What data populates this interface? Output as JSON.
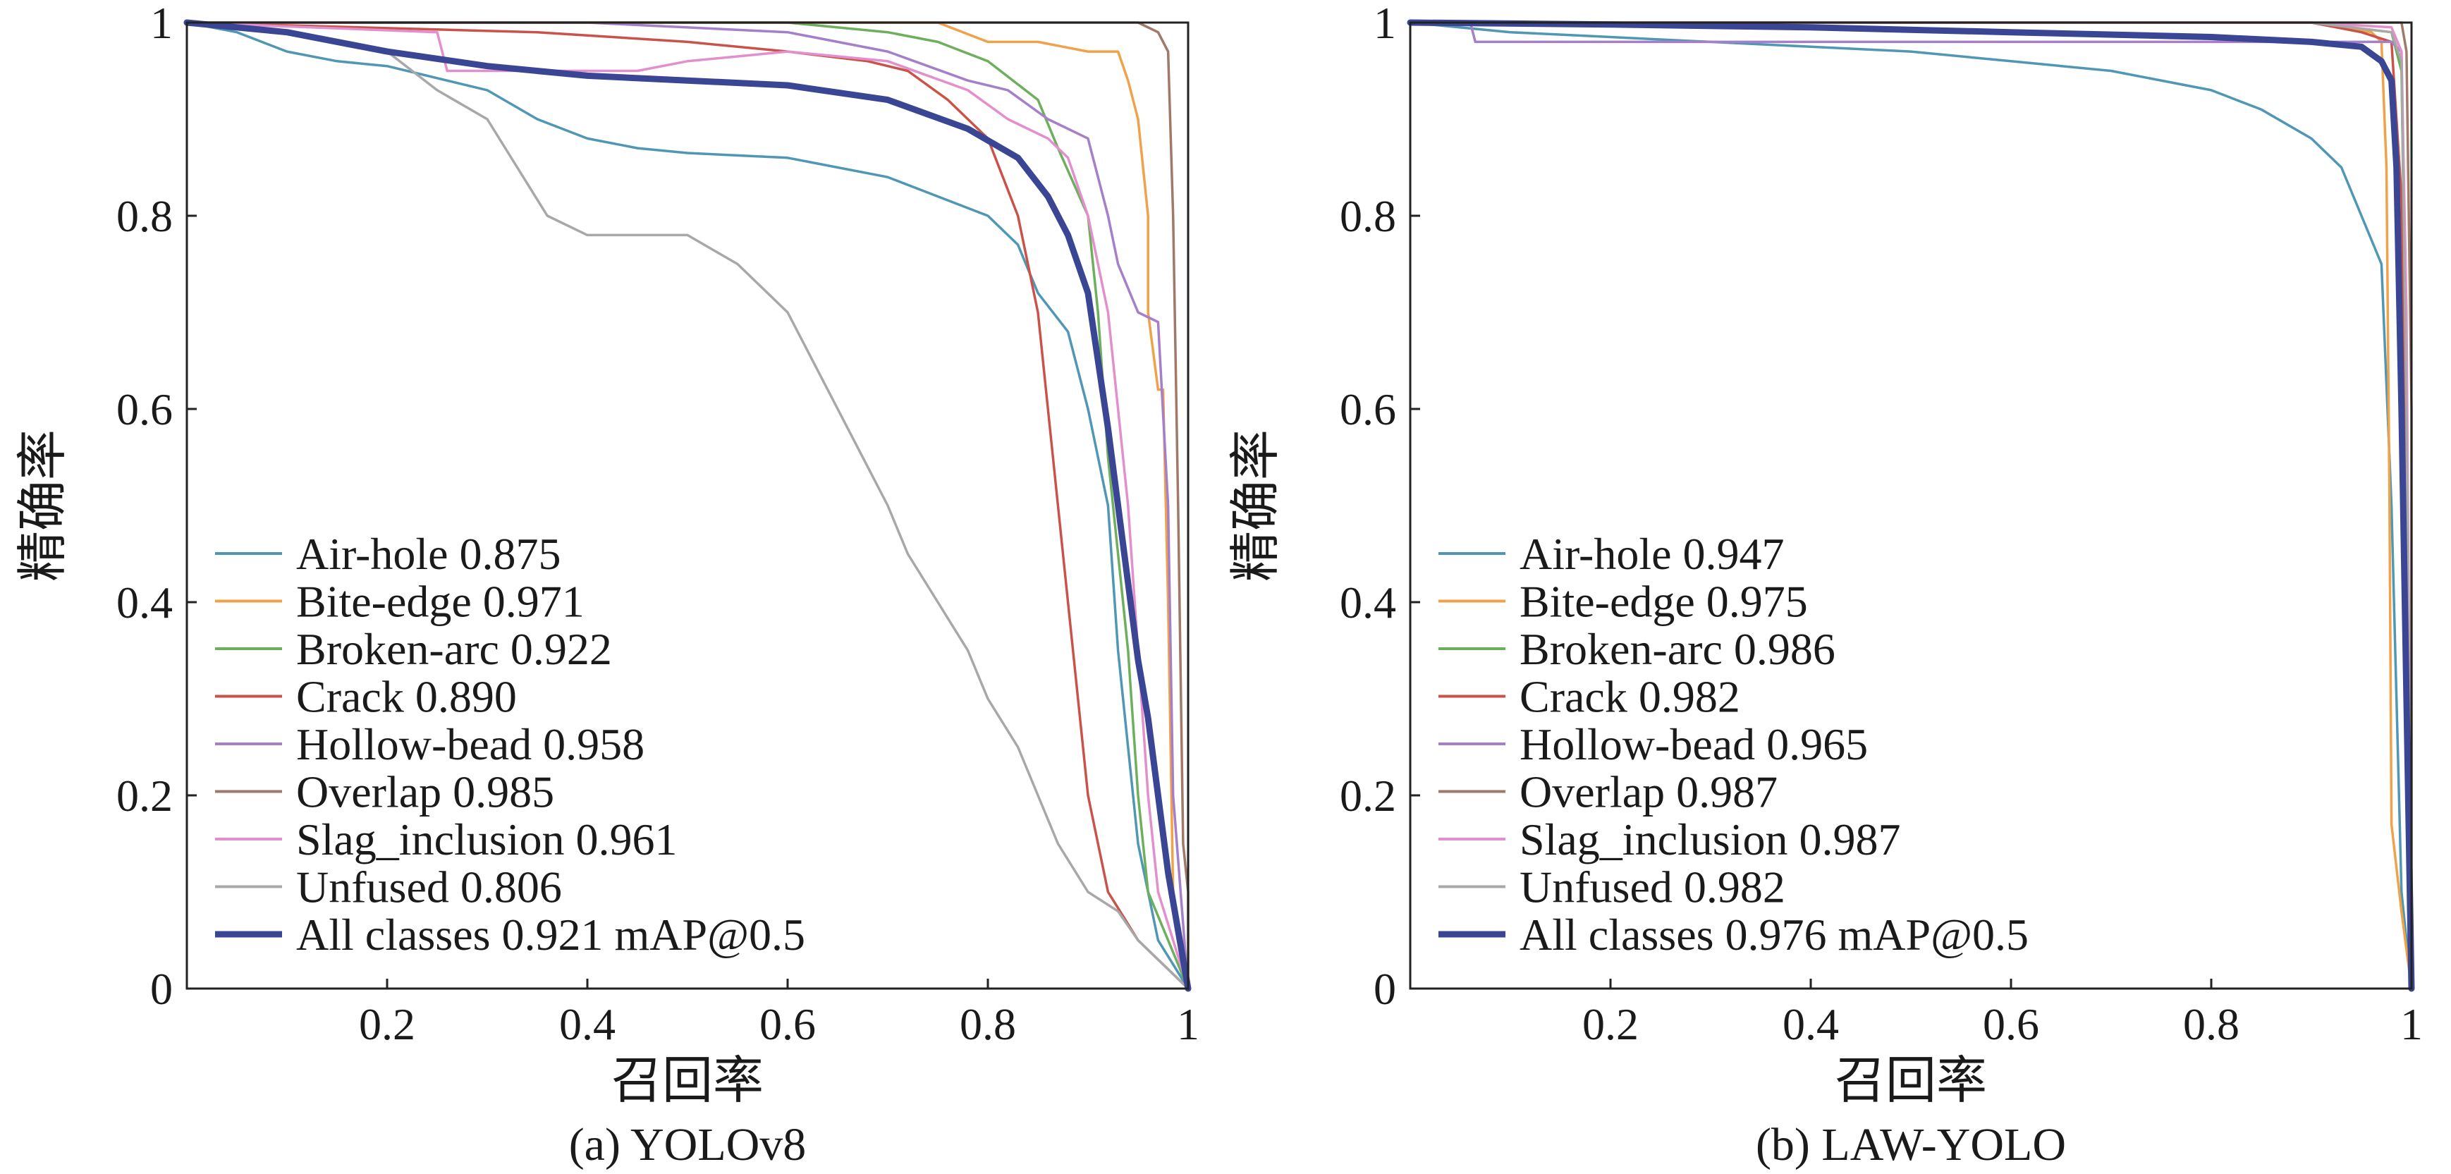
{
  "chart_data": [
    {
      "type": "line",
      "caption": "(a) YOLOv8",
      "xlabel": "召回率",
      "ylabel": "精确率",
      "xlim": [
        0,
        1
      ],
      "ylim": [
        0,
        1
      ],
      "xticks": [
        "0.2",
        "0.4",
        "0.6",
        "0.8",
        "1"
      ],
      "yticks": [
        "0",
        "0.2",
        "0.4",
        "0.6",
        "0.8",
        "1"
      ],
      "grid": false,
      "legend_position": "bottom-left",
      "series": [
        {
          "label": "Air-hole 0.875",
          "color": "#4f97b4",
          "width": 1,
          "points": [
            [
              0,
              1
            ],
            [
              0.05,
              0.99
            ],
            [
              0.1,
              0.97
            ],
            [
              0.15,
              0.96
            ],
            [
              0.2,
              0.955
            ],
            [
              0.3,
              0.93
            ],
            [
              0.35,
              0.9
            ],
            [
              0.4,
              0.88
            ],
            [
              0.45,
              0.87
            ],
            [
              0.5,
              0.865
            ],
            [
              0.6,
              0.86
            ],
            [
              0.7,
              0.84
            ],
            [
              0.75,
              0.82
            ],
            [
              0.8,
              0.8
            ],
            [
              0.83,
              0.77
            ],
            [
              0.85,
              0.72
            ],
            [
              0.88,
              0.68
            ],
            [
              0.9,
              0.6
            ],
            [
              0.92,
              0.5
            ],
            [
              0.93,
              0.35
            ],
            [
              0.95,
              0.15
            ],
            [
              0.97,
              0.05
            ],
            [
              1,
              0
            ]
          ]
        },
        {
          "label": "Bite-edge 0.971",
          "color": "#f0a24a",
          "width": 1,
          "points": [
            [
              0,
              1
            ],
            [
              0.5,
              1
            ],
            [
              0.75,
              1
            ],
            [
              0.8,
              0.98
            ],
            [
              0.85,
              0.98
            ],
            [
              0.9,
              0.97
            ],
            [
              0.93,
              0.97
            ],
            [
              0.94,
              0.94
            ],
            [
              0.95,
              0.9
            ],
            [
              0.96,
              0.8
            ],
            [
              0.96,
              0.7
            ],
            [
              0.97,
              0.62
            ],
            [
              0.975,
              0.62
            ],
            [
              0.98,
              0.4
            ],
            [
              0.985,
              0.1
            ],
            [
              1,
              0
            ]
          ]
        },
        {
          "label": "Broken-arc 0.922",
          "color": "#6eaf5e",
          "width": 1,
          "points": [
            [
              0,
              1
            ],
            [
              0.6,
              1
            ],
            [
              0.7,
              0.99
            ],
            [
              0.75,
              0.98
            ],
            [
              0.8,
              0.96
            ],
            [
              0.85,
              0.92
            ],
            [
              0.87,
              0.87
            ],
            [
              0.9,
              0.8
            ],
            [
              0.91,
              0.7
            ],
            [
              0.92,
              0.55
            ],
            [
              0.93,
              0.45
            ],
            [
              0.94,
              0.35
            ],
            [
              0.95,
              0.2
            ],
            [
              0.96,
              0.1
            ],
            [
              1,
              0
            ]
          ]
        },
        {
          "label": "Crack 0.890",
          "color": "#c9534a",
          "width": 1,
          "points": [
            [
              0,
              1
            ],
            [
              0.35,
              0.99
            ],
            [
              0.5,
              0.98
            ],
            [
              0.6,
              0.97
            ],
            [
              0.68,
              0.96
            ],
            [
              0.72,
              0.95
            ],
            [
              0.76,
              0.92
            ],
            [
              0.8,
              0.88
            ],
            [
              0.83,
              0.8
            ],
            [
              0.85,
              0.7
            ],
            [
              0.86,
              0.6
            ],
            [
              0.87,
              0.5
            ],
            [
              0.88,
              0.4
            ],
            [
              0.89,
              0.3
            ],
            [
              0.9,
              0.2
            ],
            [
              0.92,
              0.1
            ],
            [
              0.95,
              0.05
            ],
            [
              1,
              0
            ]
          ]
        },
        {
          "label": "Hollow-bead 0.958",
          "color": "#a57fc9",
          "width": 1,
          "points": [
            [
              0,
              1
            ],
            [
              0.4,
              1
            ],
            [
              0.6,
              0.99
            ],
            [
              0.7,
              0.97
            ],
            [
              0.78,
              0.94
            ],
            [
              0.82,
              0.93
            ],
            [
              0.86,
              0.9
            ],
            [
              0.9,
              0.88
            ],
            [
              0.92,
              0.8
            ],
            [
              0.93,
              0.75
            ],
            [
              0.95,
              0.7
            ],
            [
              0.97,
              0.69
            ],
            [
              0.98,
              0.5
            ],
            [
              0.985,
              0.2
            ],
            [
              1,
              0
            ]
          ]
        },
        {
          "label": "Overlap 0.985",
          "color": "#a07968",
          "width": 1,
          "points": [
            [
              0,
              1
            ],
            [
              0.6,
              1
            ],
            [
              0.8,
              1
            ],
            [
              0.9,
              1
            ],
            [
              0.95,
              1
            ],
            [
              0.97,
              0.99
            ],
            [
              0.98,
              0.97
            ],
            [
              0.985,
              0.8
            ],
            [
              0.99,
              0.5
            ],
            [
              0.995,
              0.15
            ],
            [
              1,
              0.1
            ],
            [
              1,
              0
            ]
          ]
        },
        {
          "label": "Slag_inclusion 0.961",
          "color": "#e48fcd",
          "width": 1,
          "points": [
            [
              0,
              1
            ],
            [
              0.25,
              0.99
            ],
            [
              0.26,
              0.95
            ],
            [
              0.45,
              0.95
            ],
            [
              0.5,
              0.96
            ],
            [
              0.6,
              0.97
            ],
            [
              0.7,
              0.96
            ],
            [
              0.78,
              0.93
            ],
            [
              0.82,
              0.9
            ],
            [
              0.86,
              0.88
            ],
            [
              0.88,
              0.86
            ],
            [
              0.9,
              0.8
            ],
            [
              0.92,
              0.7
            ],
            [
              0.93,
              0.6
            ],
            [
              0.94,
              0.5
            ],
            [
              0.95,
              0.35
            ],
            [
              0.96,
              0.2
            ],
            [
              0.97,
              0.1
            ],
            [
              1,
              0
            ]
          ]
        },
        {
          "label": "Unfused 0.806",
          "color": "#a8a8a8",
          "width": 1,
          "points": [
            [
              0,
              1
            ],
            [
              0.1,
              0.99
            ],
            [
              0.2,
              0.97
            ],
            [
              0.25,
              0.93
            ],
            [
              0.3,
              0.9
            ],
            [
              0.33,
              0.85
            ],
            [
              0.36,
              0.8
            ],
            [
              0.4,
              0.78
            ],
            [
              0.45,
              0.78
            ],
            [
              0.5,
              0.78
            ],
            [
              0.55,
              0.75
            ],
            [
              0.6,
              0.7
            ],
            [
              0.65,
              0.6
            ],
            [
              0.7,
              0.5
            ],
            [
              0.72,
              0.45
            ],
            [
              0.75,
              0.4
            ],
            [
              0.78,
              0.35
            ],
            [
              0.8,
              0.3
            ],
            [
              0.83,
              0.25
            ],
            [
              0.85,
              0.2
            ],
            [
              0.87,
              0.15
            ],
            [
              0.9,
              0.1
            ],
            [
              0.93,
              0.08
            ],
            [
              0.95,
              0.05
            ],
            [
              1,
              0
            ]
          ]
        },
        {
          "label": "All classes 0.921 mAP@0.5",
          "color": "#3a4593",
          "width": 3,
          "points": [
            [
              0,
              1
            ],
            [
              0.1,
              0.99
            ],
            [
              0.2,
              0.97
            ],
            [
              0.3,
              0.955
            ],
            [
              0.4,
              0.945
            ],
            [
              0.5,
              0.94
            ],
            [
              0.6,
              0.935
            ],
            [
              0.7,
              0.92
            ],
            [
              0.78,
              0.89
            ],
            [
              0.83,
              0.86
            ],
            [
              0.86,
              0.82
            ],
            [
              0.88,
              0.78
            ],
            [
              0.9,
              0.72
            ],
            [
              0.91,
              0.65
            ],
            [
              0.92,
              0.58
            ],
            [
              0.93,
              0.5
            ],
            [
              0.94,
              0.42
            ],
            [
              0.95,
              0.34
            ],
            [
              0.96,
              0.28
            ],
            [
              0.97,
              0.2
            ],
            [
              0.98,
              0.12
            ],
            [
              0.99,
              0.06
            ],
            [
              1,
              0
            ]
          ]
        }
      ]
    },
    {
      "type": "line",
      "caption": "(b) LAW-YOLO",
      "xlabel": "召回率",
      "ylabel": "精确率",
      "xlim": [
        0,
        1
      ],
      "ylim": [
        0,
        1
      ],
      "xticks": [
        "0.2",
        "0.4",
        "0.6",
        "0.8",
        "1"
      ],
      "yticks": [
        "0",
        "0.2",
        "0.4",
        "0.6",
        "0.8",
        "1"
      ],
      "grid": false,
      "legend_position": "bottom-left",
      "series": [
        {
          "label": "Air-hole 0.947",
          "color": "#4f97b4",
          "width": 1,
          "points": [
            [
              0,
              1
            ],
            [
              0.1,
              0.99
            ],
            [
              0.2,
              0.985
            ],
            [
              0.3,
              0.98
            ],
            [
              0.4,
              0.975
            ],
            [
              0.5,
              0.97
            ],
            [
              0.6,
              0.96
            ],
            [
              0.7,
              0.95
            ],
            [
              0.8,
              0.93
            ],
            [
              0.85,
              0.91
            ],
            [
              0.9,
              0.88
            ],
            [
              0.93,
              0.85
            ],
            [
              0.95,
              0.8
            ],
            [
              0.97,
              0.75
            ],
            [
              0.98,
              0.5
            ],
            [
              0.99,
              0.1
            ],
            [
              1,
              0
            ]
          ]
        },
        {
          "label": "Bite-edge 0.975",
          "color": "#f0a24a",
          "width": 1,
          "points": [
            [
              0,
              1
            ],
            [
              0.9,
              1
            ],
            [
              0.96,
              0.99
            ],
            [
              0.97,
              0.98
            ],
            [
              0.975,
              0.85
            ],
            [
              0.978,
              0.5
            ],
            [
              0.98,
              0.17
            ],
            [
              0.99,
              0.08
            ],
            [
              1,
              0
            ]
          ]
        },
        {
          "label": "Broken-arc 0.986",
          "color": "#6eaf5e",
          "width": 1,
          "points": [
            [
              0,
              1
            ],
            [
              0.9,
              1
            ],
            [
              0.98,
              0.99
            ],
            [
              0.99,
              0.95
            ],
            [
              0.995,
              0.6
            ],
            [
              1,
              0
            ]
          ]
        },
        {
          "label": "Crack 0.982",
          "color": "#c9534a",
          "width": 1,
          "points": [
            [
              0,
              1
            ],
            [
              0.9,
              1
            ],
            [
              0.95,
              0.99
            ],
            [
              0.98,
              0.98
            ],
            [
              0.99,
              0.82
            ],
            [
              0.995,
              0.5
            ],
            [
              1,
              0
            ]
          ]
        },
        {
          "label": "Hollow-bead 0.965",
          "color": "#a57fc9",
          "width": 1,
          "points": [
            [
              0,
              1
            ],
            [
              0.06,
              1
            ],
            [
              0.065,
              0.98
            ],
            [
              0.5,
              0.98
            ],
            [
              0.9,
              0.98
            ],
            [
              0.98,
              0.98
            ],
            [
              0.99,
              0.97
            ],
            [
              0.995,
              0.6
            ],
            [
              1,
              0
            ]
          ]
        },
        {
          "label": "Overlap 0.987",
          "color": "#a07968",
          "width": 1,
          "points": [
            [
              0,
              1
            ],
            [
              0.9,
              1
            ],
            [
              0.99,
              1
            ],
            [
              0.995,
              0.97
            ],
            [
              1,
              0.6
            ],
            [
              1,
              0
            ]
          ]
        },
        {
          "label": "Slag_inclusion 0.987",
          "color": "#e48fcd",
          "width": 1,
          "points": [
            [
              0,
              1
            ],
            [
              0.9,
              1
            ],
            [
              0.98,
              0.995
            ],
            [
              0.99,
              0.97
            ],
            [
              0.995,
              0.7
            ],
            [
              1,
              0
            ]
          ]
        },
        {
          "label": "Unfused 0.982",
          "color": "#a8a8a8",
          "width": 1,
          "points": [
            [
              0,
              1
            ],
            [
              0.9,
              1
            ],
            [
              0.98,
              0.99
            ],
            [
              0.99,
              0.96
            ],
            [
              0.995,
              0.6
            ],
            [
              1,
              0
            ]
          ]
        },
        {
          "label": "All classes 0.976 mAP@0.5",
          "color": "#3a4593",
          "width": 3,
          "points": [
            [
              0,
              1
            ],
            [
              0.2,
              0.998
            ],
            [
              0.4,
              0.995
            ],
            [
              0.6,
              0.99
            ],
            [
              0.8,
              0.985
            ],
            [
              0.9,
              0.98
            ],
            [
              0.95,
              0.975
            ],
            [
              0.97,
              0.96
            ],
            [
              0.98,
              0.94
            ],
            [
              0.985,
              0.85
            ],
            [
              0.99,
              0.6
            ],
            [
              0.995,
              0.3
            ],
            [
              1,
              0
            ]
          ]
        }
      ]
    }
  ]
}
